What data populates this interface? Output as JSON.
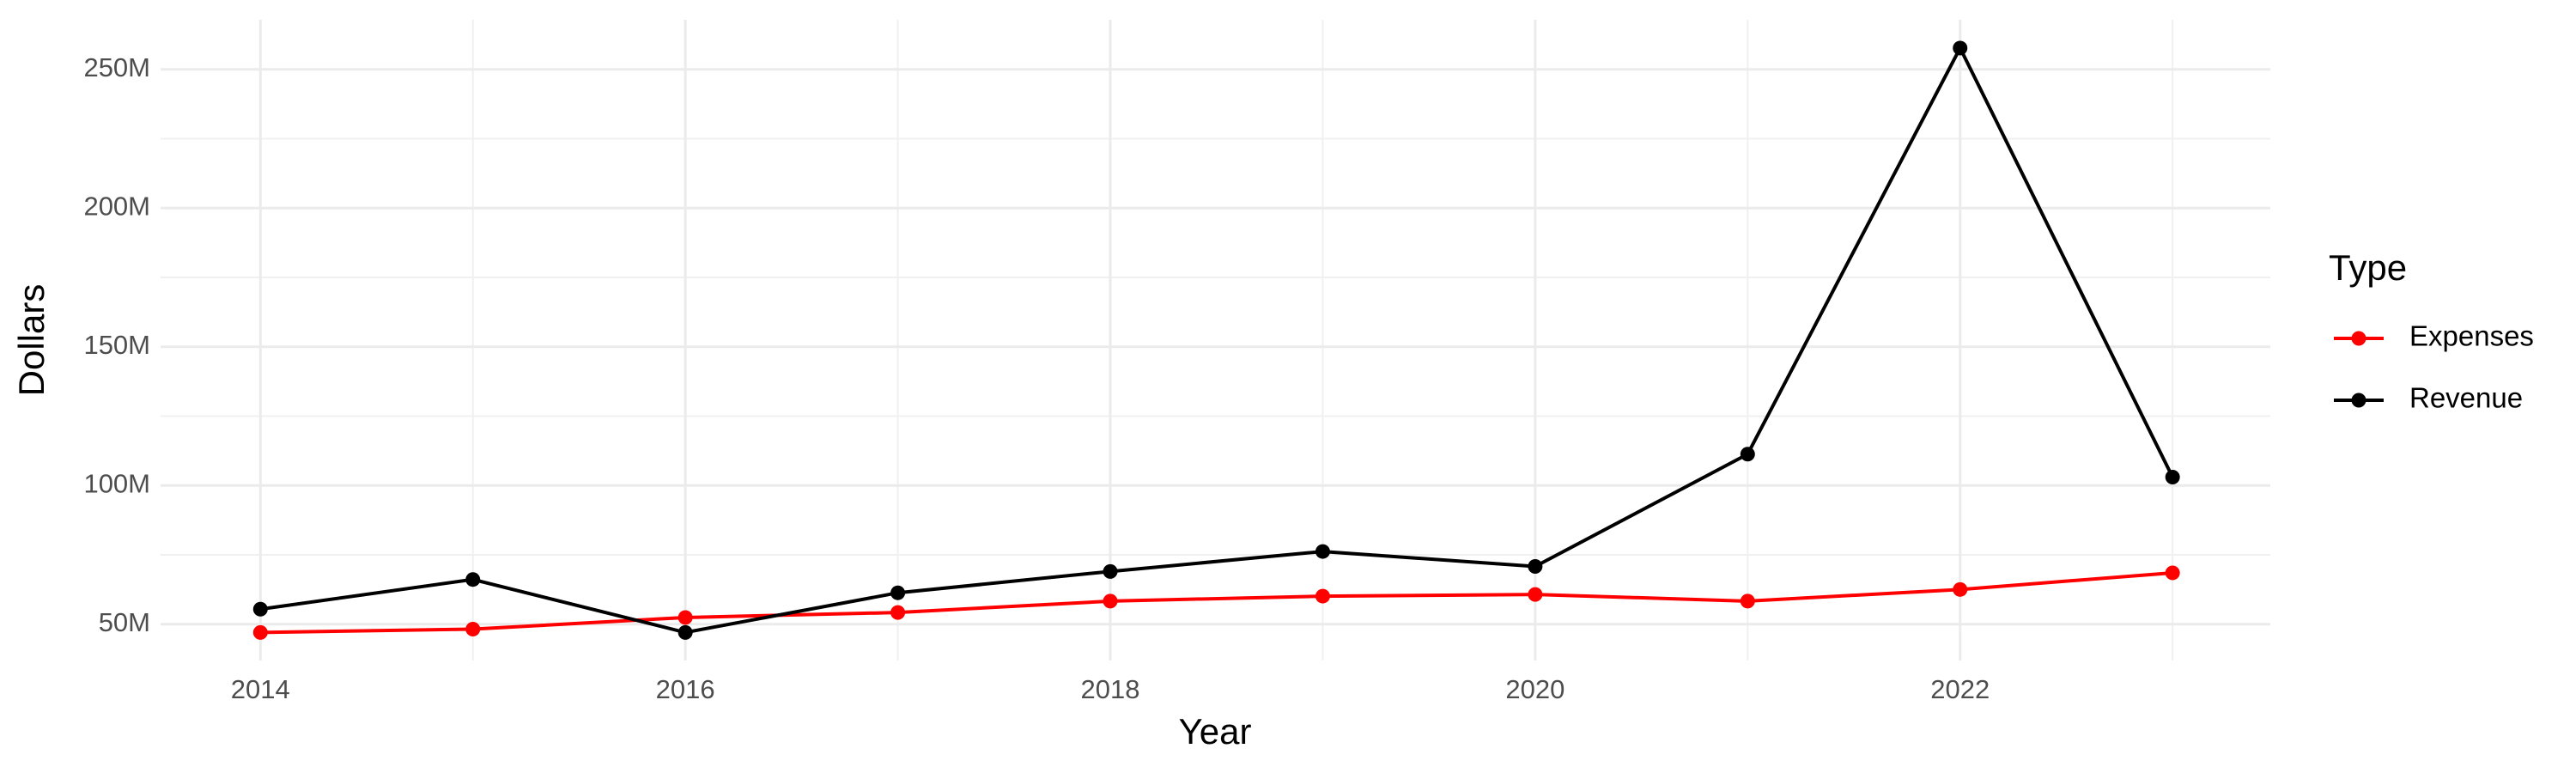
{
  "chart_data": {
    "type": "line",
    "x_label": "Year",
    "y_label": "Dollars",
    "legend_title": "Type",
    "x": [
      2014,
      2015,
      2016,
      2017,
      2018,
      2019,
      2020,
      2021,
      2022,
      2023
    ],
    "series": [
      {
        "name": "Expenses",
        "color": "#ff0000",
        "values": [
          47000000,
          48200000,
          52400000,
          54200000,
          58300000,
          60100000,
          60700000,
          58300000,
          62500000,
          68500000
        ]
      },
      {
        "name": "Revenue",
        "color": "#000000",
        "values": [
          55400000,
          66100000,
          47000000,
          61300000,
          69000000,
          76200000,
          70800000,
          111300000,
          257700000,
          103000000
        ]
      }
    ],
    "xlim": [
      2013.53,
      2023.46
    ],
    "xticks": [
      2014,
      2016,
      2018,
      2020,
      2022
    ],
    "ylim": [
      36900000,
      267900000
    ],
    "yticks": [
      {
        "value": 50000000,
        "label": "50M"
      },
      {
        "value": 100000000,
        "label": "100M"
      },
      {
        "value": 150000000,
        "label": "150M"
      },
      {
        "value": 200000000,
        "label": "200M"
      },
      {
        "value": 250000000,
        "label": "250M"
      }
    ],
    "grid": true,
    "legend_position": "right"
  }
}
